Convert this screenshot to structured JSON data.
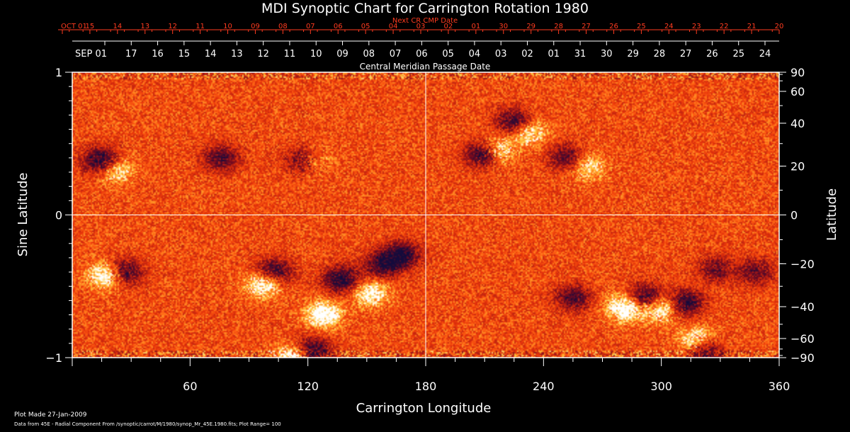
{
  "colors": {
    "background": "#000000",
    "text": "#ffffff",
    "top_axis": "#ff3b1f",
    "grid": "#ffffff"
  },
  "chart_data": {
    "type": "heatmap",
    "title": "MDI Synoptic Chart for Carrington Rotation 1980",
    "xlabel": "Carrington Longitude",
    "ylabel_left": "Sine Latitude",
    "ylabel_right": "Latitude",
    "xlim": [
      0,
      360
    ],
    "ylim": [
      -1,
      1
    ],
    "x_ticks": [
      60,
      120,
      180,
      240,
      300,
      360
    ],
    "y_ticks_left": [
      {
        "v": 1,
        "label": "1"
      },
      {
        "v": 0,
        "label": "0"
      },
      {
        "v": -1,
        "label": "−1"
      }
    ],
    "y_ticks_right": [
      90,
      60,
      40,
      20,
      0,
      -20,
      -40,
      -60,
      -90
    ],
    "y_tick_right_labels": [
      "90",
      "60",
      "40",
      "20",
      "0",
      "−20",
      "−40",
      "−60",
      "−90"
    ],
    "grid_lines": {
      "x": [
        180
      ],
      "y": [
        0
      ]
    },
    "colormap": "dark blue → red-orange → yellow → white",
    "background_level": 0.62,
    "active_regions": [
      {
        "lon": 15,
        "sinlat": 0.38,
        "polarity": "negative",
        "strength": 0.9
      },
      {
        "lon": 22,
        "sinlat": 0.32,
        "polarity": "positive",
        "strength": 0.7
      },
      {
        "lon": 76,
        "sinlat": 0.4,
        "polarity": "negative",
        "strength": 0.6
      },
      {
        "lon": 118,
        "sinlat": 0.38,
        "polarity": "negative",
        "strength": 0.7
      },
      {
        "lon": 122,
        "sinlat": 0.38,
        "polarity": "positive",
        "strength": 0.6
      },
      {
        "lon": 18,
        "sinlat": -0.42,
        "polarity": "positive",
        "strength": 1.0
      },
      {
        "lon": 26,
        "sinlat": -0.4,
        "polarity": "negative",
        "strength": 0.8
      },
      {
        "lon": 98,
        "sinlat": -0.48,
        "polarity": "positive",
        "strength": 0.9
      },
      {
        "lon": 103,
        "sinlat": -0.4,
        "polarity": "negative",
        "strength": 0.8
      },
      {
        "lon": 113,
        "sinlat": -1.0,
        "polarity": "positive",
        "strength": 1.0
      },
      {
        "lon": 122,
        "sinlat": -0.95,
        "polarity": "negative",
        "strength": 0.8
      },
      {
        "lon": 128,
        "sinlat": -0.7,
        "polarity": "positive",
        "strength": 0.9
      },
      {
        "lon": 137,
        "sinlat": -0.45,
        "polarity": "negative",
        "strength": 0.8
      },
      {
        "lon": 152,
        "sinlat": -0.55,
        "polarity": "positive",
        "strength": 0.7
      },
      {
        "lon": 158,
        "sinlat": -0.35,
        "polarity": "negative",
        "strength": 0.7
      },
      {
        "lon": 168,
        "sinlat": -0.28,
        "polarity": "negative",
        "strength": 0.8
      },
      {
        "lon": 210,
        "sinlat": 0.43,
        "polarity": "negative",
        "strength": 1.0
      },
      {
        "lon": 215,
        "sinlat": 0.45,
        "polarity": "positive",
        "strength": 1.0
      },
      {
        "lon": 225,
        "sinlat": 0.65,
        "polarity": "negative",
        "strength": 0.7
      },
      {
        "lon": 232,
        "sinlat": 0.58,
        "polarity": "positive",
        "strength": 0.7
      },
      {
        "lon": 252,
        "sinlat": 0.4,
        "polarity": "negative",
        "strength": 0.6
      },
      {
        "lon": 262,
        "sinlat": 0.34,
        "polarity": "positive",
        "strength": 0.6
      },
      {
        "lon": 282,
        "sinlat": -0.65,
        "polarity": "positive",
        "strength": 1.0
      },
      {
        "lon": 292,
        "sinlat": -0.58,
        "polarity": "negative",
        "strength": 0.8
      },
      {
        "lon": 300,
        "sinlat": -0.65,
        "polarity": "positive",
        "strength": 0.9
      },
      {
        "lon": 312,
        "sinlat": -0.62,
        "polarity": "negative",
        "strength": 0.8
      },
      {
        "lon": 318,
        "sinlat": -0.88,
        "polarity": "positive",
        "strength": 0.8
      },
      {
        "lon": 322,
        "sinlat": -0.95,
        "polarity": "negative",
        "strength": 0.7
      },
      {
        "lon": 255,
        "sinlat": -0.58,
        "polarity": "negative",
        "strength": 0.6
      },
      {
        "lon": 328,
        "sinlat": -0.38,
        "polarity": "negative",
        "strength": 0.5
      },
      {
        "lon": 348,
        "sinlat": -0.4,
        "polarity": "negative",
        "strength": 0.5
      }
    ],
    "top_axis": {
      "label": "Next CR CMP Date",
      "ticks": [
        "OCT 01",
        "15",
        "14",
        "13",
        "12",
        "11",
        "10",
        "09",
        "08",
        "07",
        "06",
        "05",
        "04",
        "03",
        "02",
        "01",
        "30",
        "29",
        "28",
        "27",
        "26",
        "25",
        "24",
        "23",
        "22",
        "21",
        "20"
      ]
    },
    "date_axis": {
      "label": "Central Meridian Passage Date",
      "ticks": [
        "SEP 01",
        "17",
        "16",
        "15",
        "14",
        "13",
        "12",
        "11",
        "10",
        "09",
        "08",
        "07",
        "06",
        "05",
        "04",
        "03",
        "02",
        "01",
        "31",
        "30",
        "29",
        "28",
        "27",
        "26",
        "25",
        "24"
      ]
    }
  },
  "footer": {
    "plot_made": "Plot Made 27-Jan-2009",
    "source": "Data from 45E - Radial Component From /synoptic/carrot/M/1980/synop_Mr_45E.1980.fits; Plot Range= 100"
  }
}
